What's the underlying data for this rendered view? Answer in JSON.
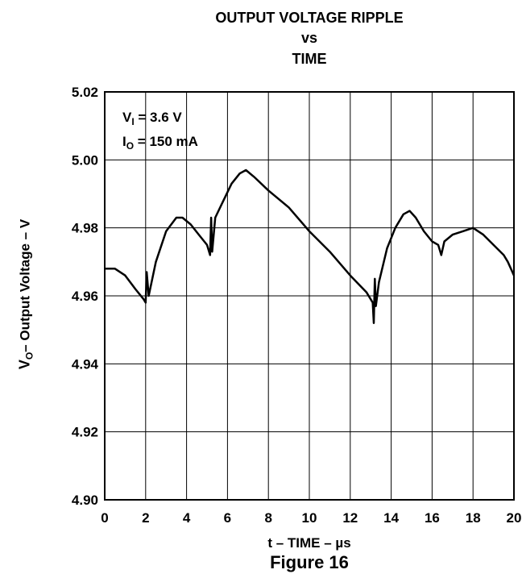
{
  "chart_data": {
    "type": "line",
    "title_lines": [
      "OUTPUT VOLTAGE RIPPLE",
      "vs",
      "TIME"
    ],
    "xlabel": "t – TIME – µs",
    "ylabel": {
      "main": "V",
      "sub": "O",
      "rest": "– Output Voltage – V"
    },
    "figure_label": "Figure 16",
    "annotations": [
      {
        "main": "V",
        "sub": "I",
        "rest": " = 3.6 V"
      },
      {
        "main": "I",
        "sub": "O",
        "rest": " = 150 mA"
      }
    ],
    "xlim": [
      0,
      20
    ],
    "ylim": [
      4.9,
      5.02
    ],
    "x_ticks": [
      "0",
      "2",
      "4",
      "6",
      "8",
      "10",
      "12",
      "14",
      "16",
      "18",
      "20"
    ],
    "y_ticks": [
      "5.02",
      "5.00",
      "4.98",
      "4.96",
      "4.94",
      "4.92",
      "4.90"
    ],
    "grid": true,
    "series": [
      {
        "color": "#000000",
        "x": [
          0.0,
          0.5,
          1.0,
          1.5,
          1.9,
          2.0,
          2.05,
          2.15,
          2.5,
          3.0,
          3.5,
          3.8,
          4.2,
          4.6,
          5.0,
          5.15,
          5.2,
          5.25,
          5.4,
          5.8,
          6.2,
          6.6,
          6.9,
          7.3,
          8.0,
          9.0,
          10.0,
          11.0,
          12.0,
          12.8,
          13.1,
          13.15,
          13.2,
          13.25,
          13.4,
          13.8,
          14.2,
          14.6,
          14.9,
          15.2,
          15.6,
          16.0,
          16.3,
          16.45,
          16.6,
          17.0,
          17.5,
          18.0,
          18.5,
          19.0,
          19.5,
          19.7,
          20.0
        ],
        "y": [
          4.968,
          4.968,
          4.966,
          4.962,
          4.959,
          4.958,
          4.967,
          4.96,
          4.97,
          4.979,
          4.983,
          4.983,
          4.981,
          4.978,
          4.975,
          4.972,
          4.983,
          4.973,
          4.983,
          4.988,
          4.993,
          4.996,
          4.997,
          4.995,
          4.991,
          4.986,
          4.979,
          4.973,
          4.966,
          4.961,
          4.958,
          4.952,
          4.965,
          4.957,
          4.964,
          4.974,
          4.98,
          4.984,
          4.985,
          4.983,
          4.979,
          4.976,
          4.975,
          4.972,
          4.976,
          4.978,
          4.979,
          4.98,
          4.978,
          4.975,
          4.972,
          4.97,
          4.966
        ]
      }
    ]
  }
}
